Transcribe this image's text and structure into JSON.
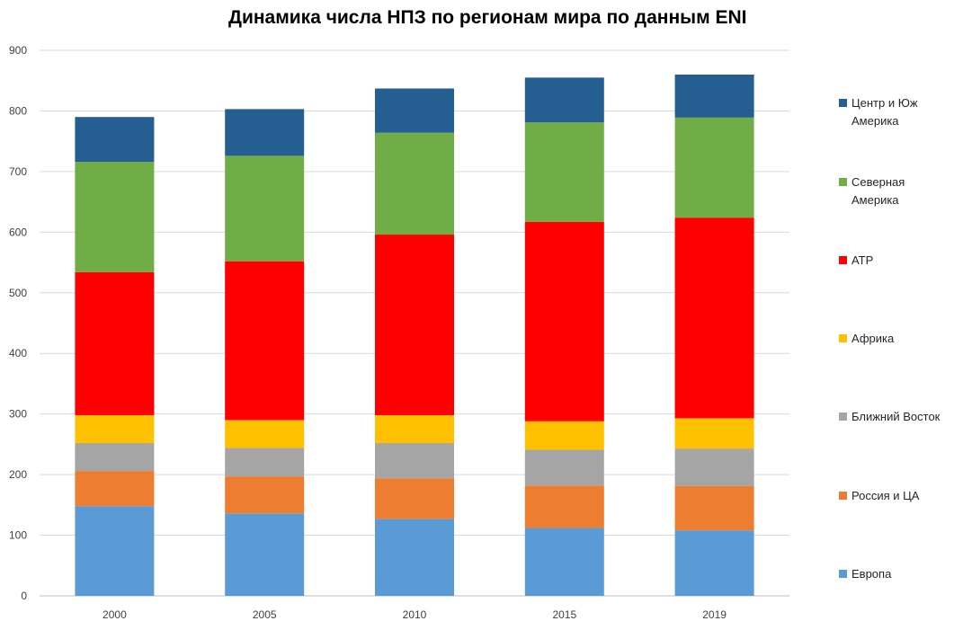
{
  "chart_data": {
    "type": "bar",
    "stacked": true,
    "title": "Динамика числа НПЗ по регионам мира по данным ENI",
    "xlabel": "",
    "ylabel": "",
    "categories": [
      "2000",
      "2005",
      "2010",
      "2015",
      "2019"
    ],
    "ylim": [
      0,
      900
    ],
    "yticks": [
      0,
      100,
      200,
      300,
      400,
      500,
      600,
      700,
      800,
      900
    ],
    "grid": true,
    "legend_position": "right",
    "series": [
      {
        "name": "Европа",
        "color": "#5B9BD5",
        "values": [
          148,
          136,
          127,
          112,
          108
        ]
      },
      {
        "name": "Россия и ЦА",
        "color": "#ED7D31",
        "values": [
          58,
          61,
          67,
          70,
          73
        ]
      },
      {
        "name": "Ближний Восток",
        "color": "#A5A5A5",
        "values": [
          46,
          47,
          58,
          59,
          62
        ]
      },
      {
        "name": "Африка",
        "color": "#FFC000",
        "values": [
          46,
          46,
          46,
          47,
          50
        ]
      },
      {
        "name": "АТР",
        "color": "#FF0000",
        "values": [
          236,
          262,
          298,
          329,
          331
        ]
      },
      {
        "name": "Северная Америка",
        "color": "#70AD47",
        "values": [
          182,
          174,
          168,
          164,
          165
        ]
      },
      {
        "name": "Центр и Юж Америка",
        "color": "#255E91",
        "values": [
          74,
          77,
          73,
          74,
          71
        ]
      }
    ],
    "legend_entries": [
      {
        "series_index": 6,
        "lines": [
          "Центр и Юж",
          "Америка"
        ]
      },
      {
        "series_index": 5,
        "lines": [
          "Северная",
          "Америка"
        ]
      },
      {
        "series_index": 4,
        "lines": [
          "АТР"
        ]
      },
      {
        "series_index": 3,
        "lines": [
          "Африка"
        ]
      },
      {
        "series_index": 2,
        "lines": [
          "Ближний Восток"
        ]
      },
      {
        "series_index": 1,
        "lines": [
          "Россия и ЦА"
        ]
      },
      {
        "series_index": 0,
        "lines": [
          "Европа"
        ]
      }
    ]
  }
}
